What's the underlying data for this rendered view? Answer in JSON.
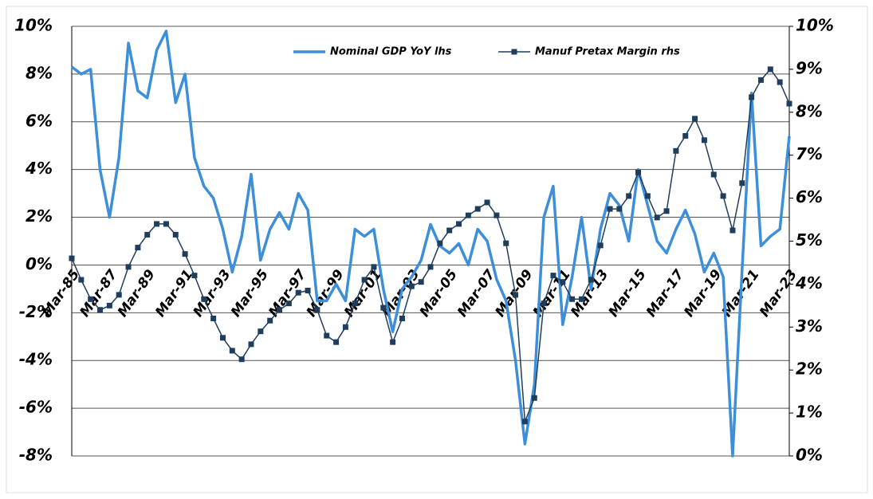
{
  "chart_data": {
    "type": "line",
    "categories": [
      "Mar-85",
      null,
      null,
      null,
      "Mar-87",
      null,
      null,
      null,
      "Mar-89",
      null,
      null,
      null,
      "Mar-91",
      null,
      null,
      null,
      "Mar-93",
      null,
      null,
      null,
      "Mar-95",
      null,
      null,
      null,
      "Mar-97",
      null,
      null,
      null,
      "Mar-99",
      null,
      null,
      null,
      "Mar-01",
      null,
      null,
      null,
      "Mar-03",
      null,
      null,
      null,
      "Mar-05",
      null,
      null,
      null,
      "Mar-07",
      null,
      null,
      null,
      "Mar-09",
      null,
      null,
      null,
      "Mar-11",
      null,
      null,
      null,
      "Mar-13",
      null,
      null,
      null,
      "Mar-15",
      null,
      null,
      null,
      "Mar-17",
      null,
      null,
      null,
      "Mar-19",
      null,
      null,
      null,
      "Mar-21",
      null,
      null,
      null,
      "Mar-23"
    ],
    "series": [
      {
        "name": "Nominal GDP YoY lhs",
        "color": "#3d8fd9",
        "axis": "y",
        "values": [
          8.3,
          8.0,
          8.2,
          4.0,
          2.0,
          4.5,
          9.3,
          7.3,
          7.0,
          9.0,
          9.8,
          6.8,
          8.0,
          4.5,
          3.3,
          2.8,
          1.5,
          -0.3,
          1.2,
          3.8,
          0.2,
          1.5,
          2.2,
          1.5,
          3.0,
          2.3,
          -1.5,
          -1.5,
          -0.8,
          -1.5,
          1.5,
          1.2,
          1.5,
          -1.0,
          -2.8,
          -1.0,
          -0.5,
          0.2,
          1.7,
          0.8,
          0.5,
          0.9,
          0.0,
          1.5,
          1.0,
          -0.6,
          -1.5,
          -4.0,
          -7.5,
          -5.0,
          2.0,
          3.3,
          -2.5,
          -0.5,
          2.0,
          -1.0,
          1.5,
          3.0,
          2.5,
          1.0,
          4.0,
          2.5,
          1.0,
          0.5,
          1.5,
          2.3,
          1.3,
          -0.3,
          0.5,
          -0.5,
          -8.0,
          -0.2,
          7.2,
          0.8,
          1.2,
          1.5,
          5.4
        ]
      },
      {
        "name": "Manuf Pretax Margin rhs",
        "color": "#1f3d5c",
        "axis": "y2",
        "values": [
          4.6,
          4.1,
          3.65,
          3.4,
          3.5,
          3.75,
          4.4,
          4.85,
          5.15,
          5.4,
          5.4,
          5.15,
          4.7,
          4.2,
          3.65,
          3.2,
          2.75,
          2.45,
          2.25,
          2.6,
          2.9,
          3.15,
          3.4,
          3.55,
          3.8,
          3.85,
          3.4,
          2.8,
          2.65,
          3.0,
          3.55,
          4.1,
          4.4,
          3.45,
          2.65,
          3.2,
          3.95,
          4.05,
          4.4,
          4.95,
          5.25,
          5.4,
          5.6,
          5.75,
          5.9,
          5.6,
          4.95,
          3.75,
          0.8,
          1.35,
          3.55,
          4.2,
          4.05,
          3.65,
          3.65,
          4.1,
          4.9,
          5.75,
          5.75,
          6.05,
          6.6,
          6.05,
          5.55,
          5.7,
          7.1,
          7.45,
          7.85,
          7.35,
          6.55,
          6.05,
          5.25,
          6.35,
          8.35,
          8.75,
          9.0,
          8.7,
          8.2
        ]
      }
    ],
    "ylim": [
      -8,
      10
    ],
    "yticks": [
      {
        "value": -8,
        "label": "-8%"
      },
      {
        "value": -6,
        "label": "-6%"
      },
      {
        "value": -4,
        "label": "-4%"
      },
      {
        "value": -2,
        "label": "-2%"
      },
      {
        "value": 0,
        "label": "0%"
      },
      {
        "value": 2,
        "label": "2%"
      },
      {
        "value": 4,
        "label": "4%"
      },
      {
        "value": 6,
        "label": "6%"
      },
      {
        "value": 8,
        "label": "8%"
      },
      {
        "value": 10,
        "label": "10%"
      }
    ],
    "y2lim": [
      0,
      10
    ],
    "y2ticks": [
      {
        "value": 0,
        "label": "0%"
      },
      {
        "value": 1,
        "label": "1%"
      },
      {
        "value": 2,
        "label": "2%"
      },
      {
        "value": 3,
        "label": "3%"
      },
      {
        "value": 4,
        "label": "4%"
      },
      {
        "value": 5,
        "label": "5%"
      },
      {
        "value": 6,
        "label": "6%"
      },
      {
        "value": 7,
        "label": "7%"
      },
      {
        "value": 8,
        "label": "8%"
      },
      {
        "value": 9,
        "label": "9%"
      },
      {
        "value": 10,
        "label": "10%"
      }
    ],
    "grid": true,
    "legend": "top"
  }
}
